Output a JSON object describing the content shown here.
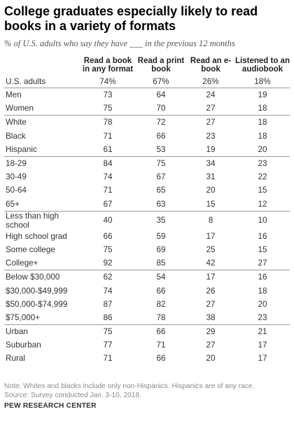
{
  "title": "College graduates especially likely to read books in a variety of formats",
  "subtitle": "% of U.S. adults who say they have ___ in the previous 12 months",
  "chart_data": {
    "type": "table",
    "columns": [
      "Read a book in any format",
      "Read a print book",
      "Read an e-book",
      "Listened to an audiobook"
    ],
    "groups": [
      {
        "rows": [
          {
            "label": "U.S. adults",
            "values": [
              "74%",
              "67%",
              "26%",
              "18%"
            ]
          }
        ]
      },
      {
        "rows": [
          {
            "label": "Men",
            "values": [
              "73",
              "64",
              "24",
              "19"
            ]
          },
          {
            "label": "Women",
            "values": [
              "75",
              "70",
              "27",
              "18"
            ]
          }
        ]
      },
      {
        "rows": [
          {
            "label": "White",
            "values": [
              "78",
              "72",
              "27",
              "18"
            ]
          },
          {
            "label": "Black",
            "values": [
              "71",
              "66",
              "23",
              "18"
            ]
          },
          {
            "label": "Hispanic",
            "values": [
              "61",
              "53",
              "19",
              "20"
            ]
          }
        ]
      },
      {
        "rows": [
          {
            "label": "18-29",
            "values": [
              "84",
              "75",
              "34",
              "23"
            ]
          },
          {
            "label": "30-49",
            "values": [
              "74",
              "67",
              "31",
              "22"
            ]
          },
          {
            "label": "50-64",
            "values": [
              "71",
              "65",
              "20",
              "15"
            ]
          },
          {
            "label": "65+",
            "values": [
              "67",
              "63",
              "15",
              "12"
            ]
          }
        ]
      },
      {
        "rows": [
          {
            "label": "Less than high school",
            "values": [
              "40",
              "35",
              "8",
              "10"
            ]
          },
          {
            "label": "High school grad",
            "values": [
              "66",
              "59",
              "17",
              "16"
            ]
          },
          {
            "label": "Some college",
            "values": [
              "75",
              "69",
              "25",
              "15"
            ]
          },
          {
            "label": "College+",
            "values": [
              "92",
              "85",
              "42",
              "27"
            ]
          }
        ]
      },
      {
        "rows": [
          {
            "label": "Below $30,000",
            "values": [
              "62",
              "54",
              "17",
              "16"
            ]
          },
          {
            "label": "$30,000-$49,999",
            "values": [
              "74",
              "66",
              "26",
              "18"
            ]
          },
          {
            "label": "$50,000-$74,999",
            "values": [
              "87",
              "82",
              "27",
              "20"
            ]
          },
          {
            "label": "$75,000+",
            "values": [
              "86",
              "78",
              "38",
              "23"
            ]
          }
        ]
      },
      {
        "rows": [
          {
            "label": "Urban",
            "values": [
              "75",
              "66",
              "29",
              "21"
            ]
          },
          {
            "label": "Suburban",
            "values": [
              "77",
              "71",
              "27",
              "17"
            ]
          },
          {
            "label": "Rural",
            "values": [
              "71",
              "66",
              "20",
              "17"
            ]
          }
        ]
      }
    ]
  },
  "footer": {
    "note": "Note: Whites and blacks include only non-Hispanics. Hispanics are of any race.",
    "source": "Source: Survey conducted Jan. 3-10, 2018.",
    "org": "PEW RESEARCH CENTER"
  }
}
